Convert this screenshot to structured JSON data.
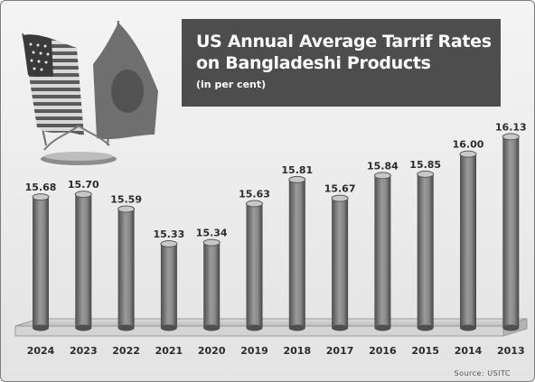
{
  "chart_data": {
    "type": "bar",
    "title": "US Annual Average Tarrif Rates",
    "title_line2": "on Bangladeshi Products",
    "subtitle": "(in per cent)",
    "categories": [
      "2024",
      "2023",
      "2022",
      "2021",
      "2020",
      "2019",
      "2018",
      "2017",
      "2016",
      "2015",
      "2014",
      "2013"
    ],
    "values": [
      15.68,
      15.7,
      15.59,
      15.33,
      15.34,
      15.63,
      15.81,
      15.67,
      15.84,
      15.85,
      16.0,
      16.13
    ],
    "value_labels": [
      "15.68",
      "15.70",
      "15.59",
      "15.33",
      "15.34",
      "15.63",
      "15.81",
      "15.67",
      "15.84",
      "15.85",
      "16.00",
      "16.13"
    ],
    "ylim": [
      15.0,
      16.2
    ],
    "grid": false,
    "legend": "none",
    "source": "Source: USITC"
  },
  "colors": {
    "bar": "#8a8a8a",
    "bar_dark": "#4f4f4f",
    "bar_light": "#c8c8c8",
    "title_bg": "#4d4d4d"
  },
  "icons": [
    "us-flag-icon",
    "bangladesh-flag-icon"
  ]
}
